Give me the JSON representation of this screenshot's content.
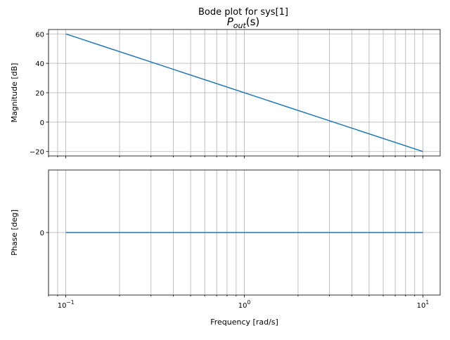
{
  "figure": {
    "suptitle": "Bode plot for sys[1]",
    "title_var": "P",
    "title_sub": "out",
    "title_arg": "(s)"
  },
  "colors": {
    "line": "#1f77b4",
    "grid": "#b0b0b0",
    "axes": "#000000"
  },
  "chart_data": [
    {
      "type": "line",
      "name": "magnitude",
      "ylabel": "Magnitude [dB]",
      "xscale": "log",
      "xlim": [
        0.08,
        12.5
      ],
      "ylim": [
        -23,
        63
      ],
      "yticks": [
        -20,
        0,
        20,
        40,
        60
      ],
      "ytick_labels": [
        "−20",
        "0",
        "20",
        "40",
        "60"
      ],
      "grid": true,
      "series": [
        {
          "x": [
            0.1,
            10
          ],
          "y": [
            60,
            -20
          ]
        }
      ]
    },
    {
      "type": "line",
      "name": "phase",
      "xlabel": "Frequency [rad/s]",
      "ylabel": "Phase [deg]",
      "xscale": "log",
      "xlim": [
        0.08,
        12.5
      ],
      "ylim": [
        -50,
        50
      ],
      "yticks": [
        0
      ],
      "ytick_labels": [
        "0"
      ],
      "xticks": [
        0.1,
        1,
        10
      ],
      "xtick_labels": [
        {
          "base": "10",
          "exp": "−1"
        },
        {
          "base": "10",
          "exp": "0"
        },
        {
          "base": "10",
          "exp": "1"
        }
      ],
      "grid": true,
      "series": [
        {
          "x": [
            0.1,
            10
          ],
          "y": [
            0,
            0
          ]
        }
      ]
    }
  ]
}
